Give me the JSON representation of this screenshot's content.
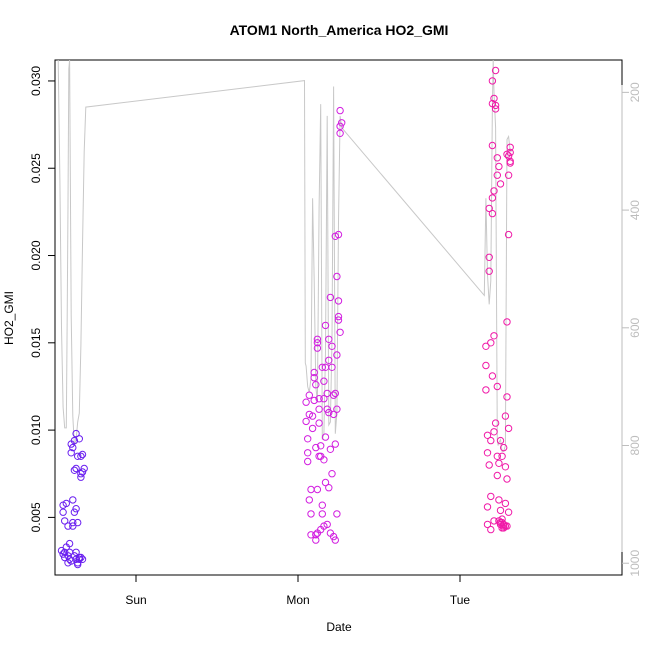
{
  "chart_data": {
    "type": "scatter",
    "title": "ATOM1 North_America HO2_GMI",
    "xlabel": "Date",
    "ylabel": "HO2_GMI",
    "xlim": [
      0,
      3.5
    ],
    "ylim": [
      0.0017,
      0.0312
    ],
    "x_ticks": [
      {
        "value": 0.5,
        "label": "Sun"
      },
      {
        "value": 1.5,
        "label": "Mon"
      },
      {
        "value": 2.5,
        "label": "Tue"
      }
    ],
    "y_ticks": [
      0.005,
      0.01,
      0.015,
      0.02,
      0.025,
      0.03
    ],
    "y_tick_labels": [
      "0.005",
      "0.010",
      "0.015",
      "0.020",
      "0.025",
      "0.030"
    ],
    "y2_ticks": [
      200,
      400,
      600,
      800,
      1000
    ],
    "y2_tick_labels": [
      "200",
      "400",
      "600",
      "800",
      "1000"
    ],
    "y2lim_reversed": [
      1020,
      145
    ],
    "y2_color": "#bdbdbd",
    "pressure_line_color": "#c8c8c8",
    "series": [
      {
        "color": "#6a1ff0",
        "points": [
          [
            0.04,
            0.0031
          ],
          [
            0.05,
            0.0029
          ],
          [
            0.05,
            0.0057
          ],
          [
            0.05,
            0.0053
          ],
          [
            0.06,
            0.003
          ],
          [
            0.06,
            0.0027
          ],
          [
            0.07,
            0.0058
          ],
          [
            0.07,
            0.0033
          ],
          [
            0.08,
            0.0028
          ],
          [
            0.08,
            0.0045
          ],
          [
            0.09,
            0.0026
          ],
          [
            0.09,
            0.003
          ],
          [
            0.1,
            0.0025
          ],
          [
            0.1,
            0.0092
          ],
          [
            0.1,
            0.0087
          ],
          [
            0.11,
            0.009
          ],
          [
            0.11,
            0.006
          ],
          [
            0.11,
            0.0047
          ],
          [
            0.12,
            0.0028
          ],
          [
            0.12,
            0.0094
          ],
          [
            0.12,
            0.0077
          ],
          [
            0.12,
            0.0053
          ],
          [
            0.13,
            0.0078
          ],
          [
            0.13,
            0.0026
          ],
          [
            0.13,
            0.003
          ],
          [
            0.13,
            0.0098
          ],
          [
            0.13,
            0.0055
          ],
          [
            0.14,
            0.0047
          ],
          [
            0.14,
            0.0085
          ],
          [
            0.14,
            0.0024
          ],
          [
            0.14,
            0.0023
          ],
          [
            0.15,
            0.0026
          ],
          [
            0.15,
            0.0095
          ],
          [
            0.15,
            0.0027
          ],
          [
            0.16,
            0.0085
          ],
          [
            0.16,
            0.0073
          ],
          [
            0.16,
            0.0075
          ],
          [
            0.16,
            0.0027
          ],
          [
            0.17,
            0.0086
          ],
          [
            0.17,
            0.0076
          ],
          [
            0.17,
            0.0026
          ],
          [
            0.18,
            0.0078
          ],
          [
            0.11,
            0.0045
          ],
          [
            0.09,
            0.0035
          ],
          [
            0.08,
            0.0024
          ],
          [
            0.06,
            0.0048
          ]
        ]
      },
      {
        "color": "#d21ee0",
        "points": [
          [
            1.55,
            0.0116
          ],
          [
            1.55,
            0.0105
          ],
          [
            1.56,
            0.0095
          ],
          [
            1.56,
            0.0087
          ],
          [
            1.56,
            0.0082
          ],
          [
            1.57,
            0.012
          ],
          [
            1.57,
            0.0109
          ],
          [
            1.57,
            0.006
          ],
          [
            1.58,
            0.0052
          ],
          [
            1.58,
            0.0066
          ],
          [
            1.59,
            0.0108
          ],
          [
            1.59,
            0.0101
          ],
          [
            1.6,
            0.013
          ],
          [
            1.6,
            0.0133
          ],
          [
            1.6,
            0.0117
          ],
          [
            1.61,
            0.0126
          ],
          [
            1.61,
            0.009
          ],
          [
            1.61,
            0.004
          ],
          [
            1.61,
            0.0037
          ],
          [
            1.62,
            0.0147
          ],
          [
            1.62,
            0.015
          ],
          [
            1.62,
            0.0152
          ],
          [
            1.62,
            0.0066
          ],
          [
            1.63,
            0.0112
          ],
          [
            1.63,
            0.0118
          ],
          [
            1.63,
            0.0104
          ],
          [
            1.64,
            0.0043
          ],
          [
            1.64,
            0.0091
          ],
          [
            1.64,
            0.0085
          ],
          [
            1.65,
            0.0136
          ],
          [
            1.65,
            0.0057
          ],
          [
            1.65,
            0.0052
          ],
          [
            1.66,
            0.0083
          ],
          [
            1.66,
            0.0118
          ],
          [
            1.66,
            0.0128
          ],
          [
            1.67,
            0.0136
          ],
          [
            1.67,
            0.016
          ],
          [
            1.67,
            0.0096
          ],
          [
            1.68,
            0.0121
          ],
          [
            1.68,
            0.0112
          ],
          [
            1.68,
            0.0046
          ],
          [
            1.69,
            0.014
          ],
          [
            1.69,
            0.0152
          ],
          [
            1.69,
            0.011
          ],
          [
            1.7,
            0.0176
          ],
          [
            1.7,
            0.0089
          ],
          [
            1.7,
            0.0041
          ],
          [
            1.71,
            0.0148
          ],
          [
            1.71,
            0.0136
          ],
          [
            1.71,
            0.0075
          ],
          [
            1.72,
            0.012
          ],
          [
            1.72,
            0.0109
          ],
          [
            1.72,
            0.0039
          ],
          [
            1.73,
            0.0092
          ],
          [
            1.73,
            0.0211
          ],
          [
            1.73,
            0.0121
          ],
          [
            1.74,
            0.0188
          ],
          [
            1.74,
            0.0143
          ],
          [
            1.74,
            0.0112
          ],
          [
            1.75,
            0.0174
          ],
          [
            1.75,
            0.0212
          ],
          [
            1.75,
            0.0163
          ],
          [
            1.75,
            0.0165
          ],
          [
            1.76,
            0.027
          ],
          [
            1.76,
            0.0274
          ],
          [
            1.76,
            0.0283
          ],
          [
            1.77,
            0.0276
          ],
          [
            1.76,
            0.0156
          ],
          [
            1.66,
            0.0045
          ],
          [
            1.63,
            0.0085
          ],
          [
            1.69,
            0.0067
          ],
          [
            1.67,
            0.007
          ],
          [
            1.74,
            0.0052
          ],
          [
            1.73,
            0.0037
          ],
          [
            1.62,
            0.0041
          ],
          [
            1.58,
            0.004
          ]
        ]
      },
      {
        "color": "#f01aa8",
        "points": [
          [
            2.66,
            0.0137
          ],
          [
            2.66,
            0.0123
          ],
          [
            2.66,
            0.0148
          ],
          [
            2.67,
            0.0097
          ],
          [
            2.67,
            0.0087
          ],
          [
            2.67,
            0.0056
          ],
          [
            2.67,
            0.0046
          ],
          [
            2.68,
            0.0199
          ],
          [
            2.68,
            0.0227
          ],
          [
            2.68,
            0.0191
          ],
          [
            2.68,
            0.008
          ],
          [
            2.69,
            0.015
          ],
          [
            2.69,
            0.0094
          ],
          [
            2.69,
            0.0062
          ],
          [
            2.69,
            0.0043
          ],
          [
            2.7,
            0.0224
          ],
          [
            2.7,
            0.0233
          ],
          [
            2.7,
            0.0287
          ],
          [
            2.7,
            0.03
          ],
          [
            2.7,
            0.0263
          ],
          [
            2.7,
            0.0131
          ],
          [
            2.71,
            0.029
          ],
          [
            2.71,
            0.0237
          ],
          [
            2.71,
            0.0154
          ],
          [
            2.71,
            0.0099
          ],
          [
            2.71,
            0.0048
          ],
          [
            2.72,
            0.0306
          ],
          [
            2.72,
            0.0284
          ],
          [
            2.72,
            0.0286
          ],
          [
            2.72,
            0.0104
          ],
          [
            2.73,
            0.0256
          ],
          [
            2.73,
            0.0246
          ],
          [
            2.73,
            0.0125
          ],
          [
            2.73,
            0.0085
          ],
          [
            2.73,
            0.0074
          ],
          [
            2.74,
            0.0251
          ],
          [
            2.74,
            0.0081
          ],
          [
            2.74,
            0.006
          ],
          [
            2.74,
            0.0048
          ],
          [
            2.75,
            0.0241
          ],
          [
            2.75,
            0.0094
          ],
          [
            2.75,
            0.0054
          ],
          [
            2.75,
            0.0047
          ],
          [
            2.76,
            0.0047
          ],
          [
            2.76,
            0.0085
          ],
          [
            2.76,
            0.0049
          ],
          [
            2.77,
            0.0044
          ],
          [
            2.77,
            0.009
          ],
          [
            2.77,
            0.0046
          ],
          [
            2.78,
            0.0108
          ],
          [
            2.78,
            0.0079
          ],
          [
            2.78,
            0.0045
          ],
          [
            2.79,
            0.0258
          ],
          [
            2.79,
            0.0162
          ],
          [
            2.79,
            0.0119
          ],
          [
            2.79,
            0.0072
          ],
          [
            2.8,
            0.0257
          ],
          [
            2.8,
            0.0212
          ],
          [
            2.8,
            0.0246
          ],
          [
            2.8,
            0.0101
          ],
          [
            2.8,
            0.0053
          ],
          [
            2.81,
            0.0259
          ],
          [
            2.81,
            0.0253
          ],
          [
            2.81,
            0.0262
          ],
          [
            2.81,
            0.0254
          ],
          [
            2.78,
            0.0058
          ],
          [
            2.77,
            0.0045
          ],
          [
            2.76,
            0.0044
          ],
          [
            2.79,
            0.0045
          ],
          [
            2.75,
            0.0046
          ]
        ]
      }
    ],
    "pressure_line": [
      [
        0.02,
        145
      ],
      [
        0.03,
        350
      ],
      [
        0.04,
        600
      ],
      [
        0.05,
        735
      ],
      [
        0.06,
        770
      ],
      [
        0.07,
        770
      ],
      [
        0.075,
        580
      ],
      [
        0.08,
        390
      ],
      [
        0.085,
        160
      ],
      [
        0.09,
        145
      ],
      [
        0.1,
        580
      ],
      [
        0.11,
        750
      ],
      [
        0.12,
        800
      ],
      [
        0.13,
        790
      ],
      [
        0.14,
        760
      ],
      [
        0.15,
        745
      ],
      [
        0.16,
        630
      ],
      [
        0.17,
        460
      ],
      [
        0.18,
        300
      ],
      [
        0.19,
        225
      ],
      [
        1.54,
        180
      ],
      [
        1.545,
        660
      ],
      [
        1.55,
        665
      ],
      [
        1.56,
        700
      ],
      [
        1.57,
        710
      ],
      [
        1.58,
        685
      ],
      [
        1.59,
        380
      ],
      [
        1.6,
        520
      ],
      [
        1.61,
        700
      ],
      [
        1.62,
        725
      ],
      [
        1.63,
        395
      ],
      [
        1.64,
        220
      ],
      [
        1.65,
        790
      ],
      [
        1.66,
        780
      ],
      [
        1.67,
        640
      ],
      [
        1.68,
        240
      ],
      [
        1.69,
        765
      ],
      [
        1.7,
        760
      ],
      [
        1.71,
        620
      ],
      [
        1.72,
        190
      ],
      [
        1.73,
        780
      ],
      [
        1.74,
        745
      ],
      [
        1.75,
        420
      ],
      [
        1.76,
        240
      ],
      [
        1.77,
        260
      ],
      [
        2.65,
        545
      ],
      [
        2.66,
        380
      ],
      [
        2.67,
        510
      ],
      [
        2.68,
        560
      ],
      [
        2.69,
        520
      ],
      [
        2.7,
        220
      ],
      [
        2.705,
        145
      ],
      [
        2.71,
        200
      ],
      [
        2.72,
        260
      ],
      [
        2.73,
        790
      ],
      [
        2.735,
        800
      ],
      [
        2.74,
        795
      ],
      [
        2.75,
        790
      ],
      [
        2.76,
        810
      ],
      [
        2.77,
        810
      ],
      [
        2.78,
        800
      ],
      [
        2.79,
        280
      ],
      [
        2.8,
        275
      ],
      [
        2.81,
        300
      ],
      [
        2.82,
        300
      ]
    ]
  }
}
